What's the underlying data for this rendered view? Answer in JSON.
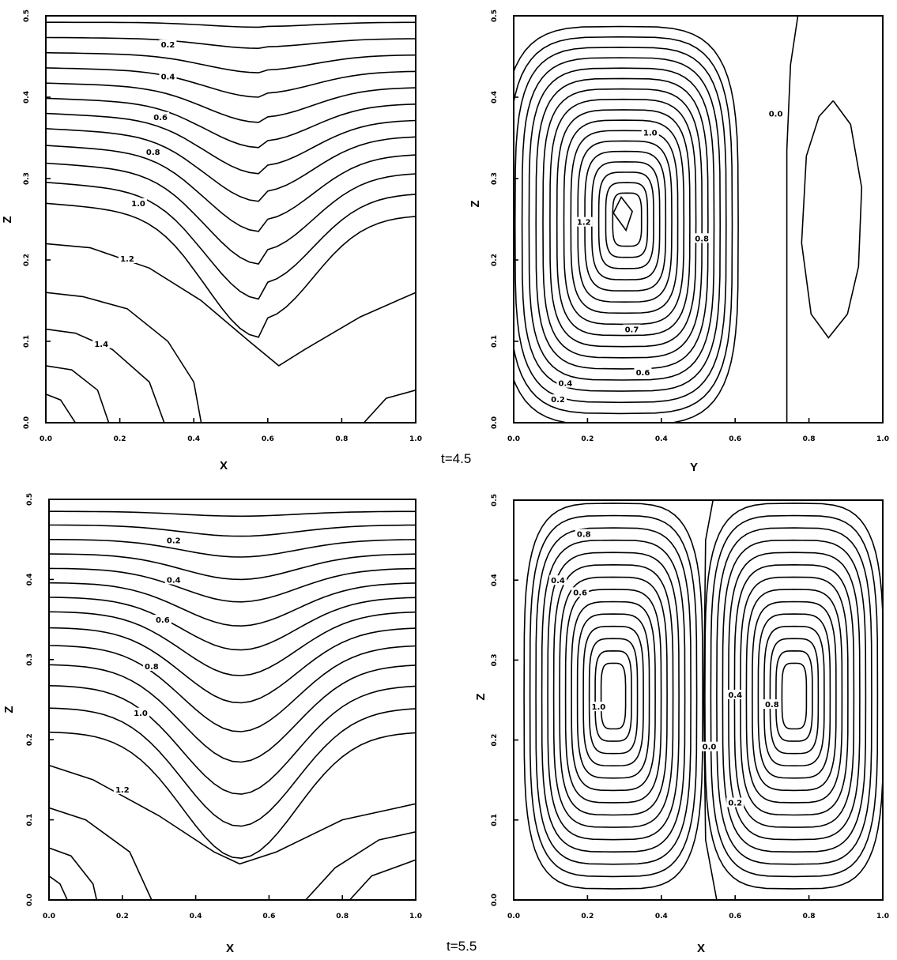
{
  "time_labels": [
    "t=4.5",
    "t=5.5"
  ],
  "chart_data": [
    {
      "type": "contour",
      "time": "t=4.5",
      "panel": "top-left",
      "xlabel": "X",
      "ylabel": "Z",
      "xlim": [
        0.0,
        1.0
      ],
      "ylim": [
        0.0,
        0.5
      ],
      "x_ticks": [
        "0.0",
        "0.2",
        "0.4",
        "0.6",
        "0.8",
        "1.0"
      ],
      "y_ticks": [
        "0.0",
        "0.1",
        "0.2",
        "0.3",
        "0.4",
        "0.5"
      ],
      "contour_labels": [
        {
          "text": "0.2",
          "x": 0.33,
          "y": 0.463
        },
        {
          "text": "0.4",
          "x": 0.33,
          "y": 0.424
        },
        {
          "text": "0.6",
          "x": 0.31,
          "y": 0.374
        },
        {
          "text": "0.8",
          "x": 0.29,
          "y": 0.331
        },
        {
          "text": "1.0",
          "x": 0.25,
          "y": 0.268
        },
        {
          "text": "1.2",
          "x": 0.22,
          "y": 0.2
        },
        {
          "text": "1.4",
          "x": 0.15,
          "y": 0.095
        }
      ]
    },
    {
      "type": "contour",
      "time": "t=4.5",
      "panel": "top-right",
      "xlabel": "Y",
      "ylabel": "Z",
      "xlim": [
        0.0,
        1.0
      ],
      "ylim": [
        0.0,
        0.5
      ],
      "x_ticks": [
        "0.0",
        "0.2",
        "0.4",
        "0.6",
        "0.8",
        "1.0"
      ],
      "y_ticks": [
        "0.0",
        "0.1",
        "0.2",
        "0.3",
        "0.4",
        "0.5"
      ],
      "contour_labels": [
        {
          "text": "1.0",
          "x": 0.37,
          "y": 0.355
        },
        {
          "text": "1.2",
          "x": 0.19,
          "y": 0.245
        },
        {
          "text": "0.8",
          "x": 0.51,
          "y": 0.225
        },
        {
          "text": "0.7",
          "x": 0.32,
          "y": 0.113
        },
        {
          "text": "0.6",
          "x": 0.35,
          "y": 0.06
        },
        {
          "text": "0.4",
          "x": 0.14,
          "y": 0.047
        },
        {
          "text": "0.2",
          "x": 0.12,
          "y": 0.027
        },
        {
          "text": "0.0",
          "x": 0.71,
          "y": 0.378
        }
      ]
    },
    {
      "type": "contour",
      "time": "t=5.5",
      "panel": "bottom-left",
      "xlabel": "X",
      "ylabel": "Z",
      "xlim": [
        0.0,
        1.0
      ],
      "ylim": [
        0.0,
        0.5
      ],
      "x_ticks": [
        "0.0",
        "0.2",
        "0.4",
        "0.6",
        "0.8",
        "1.0"
      ],
      "y_ticks": [
        "0.0",
        "0.1",
        "0.2",
        "0.3",
        "0.4",
        "0.5"
      ],
      "contour_labels": [
        {
          "text": "0.2",
          "x": 0.34,
          "y": 0.447
        },
        {
          "text": "0.4",
          "x": 0.34,
          "y": 0.398
        },
        {
          "text": "0.6",
          "x": 0.31,
          "y": 0.348
        },
        {
          "text": "0.8",
          "x": 0.28,
          "y": 0.29
        },
        {
          "text": "1.0",
          "x": 0.25,
          "y": 0.232
        },
        {
          "text": "1.2",
          "x": 0.2,
          "y": 0.136
        }
      ]
    },
    {
      "type": "contour",
      "time": "t=5.5",
      "panel": "bottom-right",
      "xlabel": "X",
      "ylabel": "Z",
      "xlim": [
        0.0,
        1.0
      ],
      "ylim": [
        0.0,
        0.5
      ],
      "x_ticks": [
        "0.0",
        "0.2",
        "0.4",
        "0.6",
        "0.8",
        "1.0"
      ],
      "y_ticks": [
        "0.0",
        "0.1",
        "0.2",
        "0.3",
        "0.4",
        "0.5"
      ],
      "contour_labels": [
        {
          "text": "0.8",
          "x": 0.19,
          "y": 0.456
        },
        {
          "text": "0.4",
          "x": 0.12,
          "y": 0.398
        },
        {
          "text": "0.6",
          "x": 0.18,
          "y": 0.383
        },
        {
          "text": "1.0",
          "x": 0.23,
          "y": 0.24
        },
        {
          "text": "0.0",
          "x": 0.53,
          "y": 0.19
        },
        {
          "text": "0.4",
          "x": 0.6,
          "y": 0.255
        },
        {
          "text": "0.8",
          "x": 0.7,
          "y": 0.243
        },
        {
          "text": "0.2",
          "x": 0.6,
          "y": 0.12
        }
      ]
    }
  ]
}
